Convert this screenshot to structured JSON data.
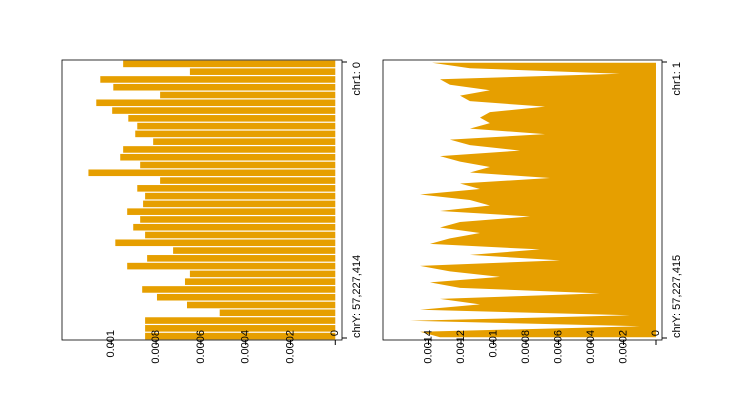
{
  "chart_data": [
    {
      "type": "bar",
      "color": "#E69F00",
      "categories": [
        "chr1: 0",
        null,
        null,
        null,
        null,
        null,
        null,
        null,
        null,
        null,
        null,
        null,
        null,
        null,
        null,
        null,
        null,
        null,
        null,
        null,
        null,
        null,
        null,
        null,
        null,
        null,
        null,
        null,
        null,
        null,
        null,
        null,
        null,
        null,
        null,
        "chrY: 57,227,414"
      ],
      "values": [
        0.000947,
        0.000649,
        0.001049,
        0.000991,
        0.000782,
        0.001067,
        0.000996,
        0.000924,
        0.000884,
        0.000893,
        0.000813,
        0.000947,
        0.00096,
        0.000871,
        0.001102,
        0.000782,
        0.000884,
        0.000849,
        0.000858,
        0.000929,
        0.000871,
        0.000902,
        0.000849,
        0.000982,
        0.000724,
        0.00084,
        0.000929,
        0.000649,
        0.000671,
        0.000862,
        0.000796,
        0.000662,
        0.000516,
        0.000849,
        0.000849,
        0.000849
      ],
      "xlim": [
        -3e-05,
        0.00122
      ],
      "xticks": [
        0,
        0.0002,
        0.0004,
        0.0006,
        0.0008,
        0.001
      ]
    },
    {
      "type": "area",
      "color": "#E69F00",
      "categories": [
        "chr1: 1",
        null,
        null,
        null,
        null,
        null,
        null,
        null,
        null,
        null,
        null,
        null,
        null,
        null,
        null,
        null,
        null,
        null,
        null,
        null,
        null,
        null,
        null,
        null,
        null,
        null,
        null,
        null,
        null,
        null,
        null,
        null,
        null,
        null,
        null,
        null,
        null,
        null,
        null,
        null,
        null,
        null,
        null,
        null,
        null,
        null,
        null,
        null,
        null,
        null,
        "chrY: 57,227,415"
      ],
      "values": [
        0.001378,
        0.001145,
        0.000222,
        0.001329,
        0.001268,
        0.001022,
        0.001206,
        0.001145,
        0.000683,
        0.001022,
        0.001083,
        0.001022,
        0.001145,
        0.000683,
        0.001268,
        0.001145,
        0.000837,
        0.001329,
        0.001206,
        0.001022,
        0.001145,
        0.000652,
        0.001206,
        0.001083,
        0.001452,
        0.001145,
        0.001022,
        0.001329,
        0.000775,
        0.001206,
        0.001329,
        0.001083,
        0.001268,
        0.001391,
        0.000714,
        0.001145,
        0.000591,
        0.001452,
        0.001268,
        0.00096,
        0.001391,
        0.001206,
        0.000345,
        0.001329,
        0.001083,
        0.001452,
        0.00016,
        0.001514,
        9.8e-05,
        0.001452,
        0.001329
      ],
      "xlim": [
        -3.7e-05,
        0.00168
      ],
      "xticks": [
        0,
        0.0002,
        0.0004,
        0.0006,
        0.0008,
        0.001,
        0.0012,
        0.0014
      ]
    }
  ]
}
